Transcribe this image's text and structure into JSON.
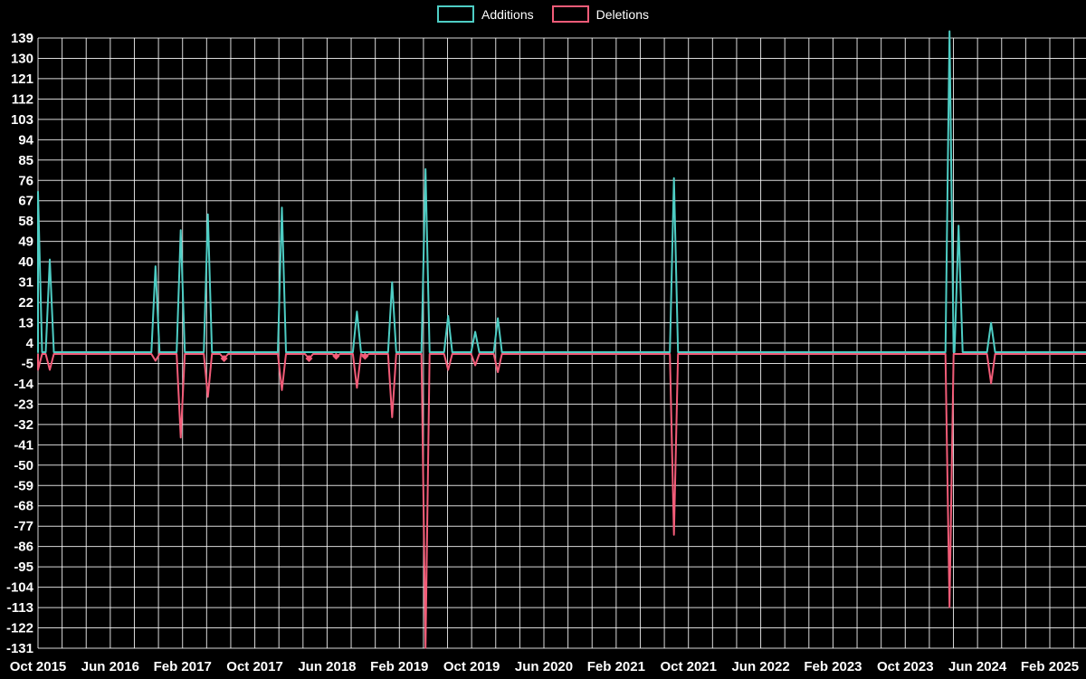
{
  "colors": {
    "background": "#000000",
    "grid": "#ffffff",
    "text": "#ffffff",
    "additions": "#4ecdc4",
    "deletions": "#f25c78"
  },
  "chart_data": {
    "type": "line",
    "title": "",
    "legend_position": "top-center",
    "grid": true,
    "legend": [
      {
        "label": "Additions",
        "color": "#4ecdc4"
      },
      {
        "label": "Deletions",
        "color": "#f25c78"
      }
    ],
    "x_ticks": [
      "Oct 2015",
      "Jun 2016",
      "Feb 2017",
      "Oct 2017",
      "Jun 2018",
      "Feb 2019",
      "Oct 2019",
      "Jun 2020",
      "Feb 2021",
      "Oct 2021",
      "Jun 2022",
      "Feb 2023",
      "Oct 2023",
      "Jun 2024",
      "Feb 2025"
    ],
    "x_tick_interval_months": 8,
    "y_ticks": [
      139,
      130,
      121,
      112,
      103,
      94,
      85,
      76,
      67,
      58,
      49,
      40,
      31,
      22,
      13,
      4,
      -5,
      -14,
      -23,
      -32,
      -41,
      -50,
      -59,
      -68,
      -77,
      -86,
      -95,
      -104,
      -113,
      -122,
      -131
    ],
    "ylim": [
      -131,
      139
    ],
    "baseline": 0,
    "events": [
      {
        "month": 0,
        "approx_date": "Oct 2015",
        "additions": 71,
        "deletions": -7
      },
      {
        "month": 1.3,
        "approx_date": "Nov 2015",
        "additions": 41,
        "deletions": -7
      },
      {
        "month": 13,
        "approx_date": "Nov 2016",
        "additions": 38,
        "deletions": -3
      },
      {
        "month": 15.8,
        "approx_date": "Jan 2017",
        "additions": 54,
        "deletions": -37
      },
      {
        "month": 18.8,
        "approx_date": "Apr 2017",
        "additions": 61,
        "deletions": -19
      },
      {
        "month": 20.6,
        "approx_date": "Jun 2017",
        "additions": 0,
        "deletions": -2,
        "marker": true
      },
      {
        "month": 27,
        "approx_date": "Jan 2018",
        "additions": 64,
        "deletions": -16
      },
      {
        "month": 30,
        "approx_date": "Apr 2018",
        "additions": 0,
        "deletions": -2,
        "marker": true
      },
      {
        "month": 33,
        "approx_date": "Jul 2018",
        "additions": 0,
        "deletions": -1,
        "marker": true
      },
      {
        "month": 35.3,
        "approx_date": "Sep 2018",
        "additions": 18,
        "deletions": -15
      },
      {
        "month": 36.2,
        "approx_date": "Oct 2018",
        "additions": 0,
        "deletions": -1,
        "marker": true
      },
      {
        "month": 39.2,
        "approx_date": "Jan 2019",
        "additions": 31,
        "deletions": -28
      },
      {
        "month": 42.9,
        "approx_date": "Apr 2019",
        "additions": 81,
        "deletions": -130
      },
      {
        "month": 45.4,
        "approx_date": "Jul 2019",
        "additions": 16,
        "deletions": -7
      },
      {
        "month": 48.4,
        "approx_date": "Oct 2019",
        "additions": 9,
        "deletions": -5
      },
      {
        "month": 50.9,
        "approx_date": "Dec 2019",
        "additions": 15,
        "deletions": -8
      },
      {
        "month": 70.4,
        "approx_date": "Aug 2021",
        "additions": 77,
        "deletions": -80
      },
      {
        "month": 100.9,
        "approx_date": "Feb 2024",
        "additions": 142,
        "deletions": -112
      },
      {
        "month": 101.9,
        "approx_date": "Mar 2024",
        "additions": 56,
        "deletions": 0
      },
      {
        "month": 105.5,
        "approx_date": "Jul 2024",
        "additions": 13,
        "deletions": -13
      }
    ]
  }
}
